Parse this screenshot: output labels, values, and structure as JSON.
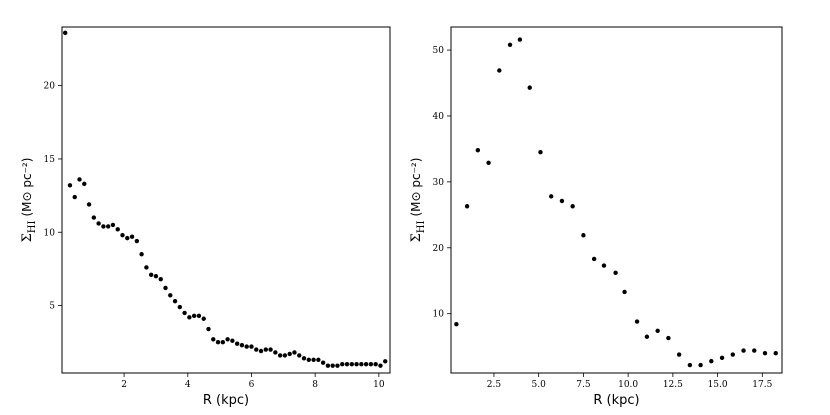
{
  "chart_data": [
    {
      "type": "scatter",
      "xlabel": "R (kpc)",
      "ylabel_main": "Σ",
      "ylabel_sub": "HI",
      "ylabel_unit": "(M⊙ pc⁻²)",
      "xlim": [
        0.05,
        10.35
      ],
      "ylim": [
        0.4,
        24.0
      ],
      "xticks": [
        2,
        4,
        6,
        8,
        10
      ],
      "xtick_labels": [
        "2",
        "4",
        "6",
        "8",
        "10"
      ],
      "yticks": [
        5,
        10,
        15,
        20
      ],
      "ytick_labels": [
        "5",
        "10",
        "15",
        "20"
      ],
      "grid": false,
      "series": [
        {
          "x": [
            0.15,
            0.3,
            0.45,
            0.6,
            0.75,
            0.9,
            1.05,
            1.2,
            1.35,
            1.5,
            1.65,
            1.8,
            1.95,
            2.1,
            2.25,
            2.4,
            2.55,
            2.7,
            2.85,
            3.0,
            3.15,
            3.3,
            3.45,
            3.6,
            3.75,
            3.9,
            4.05,
            4.2,
            4.35,
            4.5,
            4.65,
            4.8,
            4.95,
            5.1,
            5.25,
            5.4,
            5.55,
            5.7,
            5.85,
            6.0,
            6.15,
            6.3,
            6.45,
            6.6,
            6.75,
            6.9,
            7.05,
            7.2,
            7.35,
            7.5,
            7.65,
            7.8,
            7.95,
            8.1,
            8.25,
            8.4,
            8.55,
            8.7,
            8.85,
            9.0,
            9.15,
            9.3,
            9.45,
            9.6,
            9.75,
            9.9,
            10.05,
            10.2
          ],
          "y": [
            23.6,
            13.2,
            12.4,
            13.6,
            13.3,
            11.9,
            11.0,
            10.6,
            10.4,
            10.4,
            10.5,
            10.2,
            9.8,
            9.6,
            9.7,
            9.4,
            8.5,
            7.6,
            7.1,
            7.0,
            6.8,
            6.2,
            5.7,
            5.3,
            4.9,
            4.5,
            4.2,
            4.3,
            4.3,
            4.1,
            3.4,
            2.7,
            2.5,
            2.5,
            2.7,
            2.6,
            2.4,
            2.3,
            2.2,
            2.2,
            2.0,
            1.9,
            2.0,
            2.0,
            1.8,
            1.6,
            1.6,
            1.7,
            1.8,
            1.6,
            1.4,
            1.3,
            1.3,
            1.3,
            1.1,
            0.9,
            0.9,
            0.9,
            1.0,
            1.0,
            1.0,
            1.0,
            1.0,
            1.0,
            1.0,
            1.0,
            0.9,
            1.2
          ]
        }
      ]
    },
    {
      "type": "scatter",
      "xlabel": "R (kpc)",
      "ylabel_main": "Σ",
      "ylabel_sub": "HI",
      "ylabel_unit": "(M⊙ pc⁻²)",
      "xlim": [
        0.1,
        18.6
      ],
      "ylim": [
        1.0,
        53.5
      ],
      "xticks": [
        2.5,
        5.0,
        7.5,
        10.0,
        12.5,
        15.0,
        17.5
      ],
      "xtick_labels": [
        "2.5",
        "5.0",
        "7.5",
        "10.0",
        "12.5",
        "15.0",
        "17.5"
      ],
      "yticks": [
        10,
        20,
        30,
        40,
        50
      ],
      "ytick_labels": [
        "10",
        "20",
        "30",
        "40",
        "50"
      ],
      "grid": false,
      "series": [
        {
          "x": [
            0.4,
            1.0,
            1.6,
            2.2,
            2.8,
            3.4,
            3.95,
            4.5,
            5.1,
            5.7,
            6.3,
            6.9,
            7.5,
            8.1,
            8.65,
            9.3,
            9.8,
            10.5,
            11.05,
            11.65,
            12.25,
            12.85,
            13.45,
            14.05,
            14.65,
            15.25,
            15.85,
            16.45,
            17.05,
            17.65,
            18.25
          ],
          "y": [
            8.4,
            26.3,
            34.8,
            32.9,
            46.9,
            50.8,
            51.6,
            44.3,
            34.5,
            27.8,
            27.1,
            26.3,
            21.9,
            18.3,
            17.3,
            16.2,
            13.3,
            8.8,
            6.5,
            7.4,
            6.3,
            3.8,
            2.2,
            2.2,
            2.8,
            3.3,
            3.8,
            4.4,
            4.4,
            4.0,
            4.0
          ]
        }
      ]
    }
  ]
}
